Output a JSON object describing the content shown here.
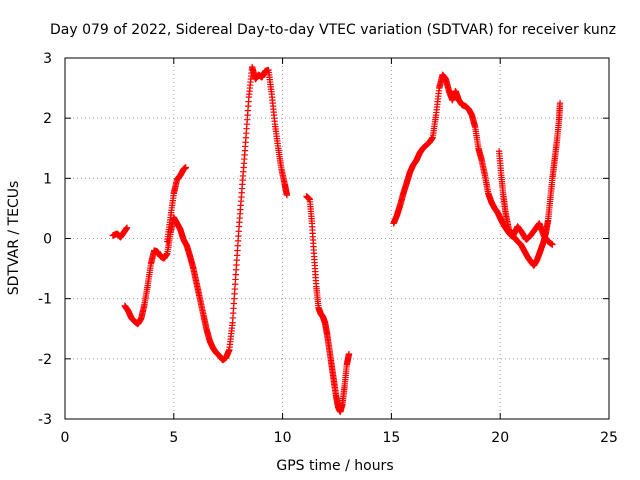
{
  "chart_data": {
    "type": "scatter",
    "title": "Day 079 of 2022, Sidereal Day-to-day VTEC variation (SDTVAR) for receiver kunz",
    "xlabel": "GPS time / hours",
    "ylabel": "SDTVAR / TECUs",
    "xlim": [
      0,
      25
    ],
    "ylim": [
      -3,
      3
    ],
    "xticks": [
      "0",
      "5",
      "10",
      "15",
      "20",
      "25"
    ],
    "yticks": [
      "-3",
      "-2",
      "-1",
      "0",
      "1",
      "2",
      "3"
    ],
    "grid": true,
    "marker": "plus",
    "color": "#ff0000",
    "segments": [
      [
        [
          2.2,
          0.05
        ],
        [
          2.4,
          0.08
        ],
        [
          2.55,
          0.02
        ],
        [
          2.7,
          0.1
        ],
        [
          2.85,
          0.18
        ]
      ],
      [
        [
          2.75,
          -1.12
        ],
        [
          2.9,
          -1.2
        ],
        [
          3.05,
          -1.32
        ],
        [
          3.2,
          -1.38
        ],
        [
          3.35,
          -1.42
        ],
        [
          3.5,
          -1.33
        ],
        [
          3.65,
          -1.1
        ],
        [
          3.8,
          -0.78
        ],
        [
          3.95,
          -0.42
        ],
        [
          4.1,
          -0.2
        ],
        [
          4.25,
          -0.22
        ],
        [
          4.4,
          -0.3
        ],
        [
          4.55,
          -0.33
        ],
        [
          4.7,
          -0.25
        ],
        [
          4.85,
          0.1
        ],
        [
          5.0,
          0.35
        ],
        [
          5.15,
          0.25
        ],
        [
          5.3,
          0.15
        ],
        [
          5.45,
          -0.02
        ],
        [
          5.6,
          -0.12
        ],
        [
          5.75,
          -0.3
        ],
        [
          5.9,
          -0.5
        ],
        [
          6.05,
          -0.75
        ],
        [
          6.2,
          -1.0
        ],
        [
          6.35,
          -1.25
        ],
        [
          6.5,
          -1.5
        ],
        [
          6.65,
          -1.7
        ],
        [
          6.8,
          -1.82
        ],
        [
          6.95,
          -1.9
        ],
        [
          7.1,
          -1.95
        ],
        [
          7.25,
          -2.02
        ],
        [
          7.4,
          -1.98
        ],
        [
          7.55,
          -1.85
        ],
        [
          7.7,
          -1.4
        ],
        [
          7.85,
          -0.6
        ],
        [
          8.0,
          0.2
        ],
        [
          8.15,
          0.9
        ],
        [
          8.3,
          1.6
        ],
        [
          8.45,
          2.35
        ],
        [
          8.6,
          2.85
        ],
        [
          8.75,
          2.65
        ],
        [
          8.9,
          2.72
        ],
        [
          9.05,
          2.68
        ],
        [
          9.2,
          2.78
        ],
        [
          9.35,
          2.8
        ],
        [
          9.5,
          2.4
        ],
        [
          9.65,
          1.9
        ],
        [
          9.8,
          1.5
        ],
        [
          9.95,
          1.15
        ],
        [
          10.1,
          0.9
        ],
        [
          10.2,
          0.72
        ]
      ],
      [
        [
          4.7,
          -0.05
        ],
        [
          4.85,
          0.35
        ],
        [
          5.0,
          0.75
        ],
        [
          5.15,
          0.98
        ],
        [
          5.3,
          1.05
        ],
        [
          5.45,
          1.15
        ],
        [
          5.55,
          1.18
        ]
      ],
      [
        [
          11.1,
          0.7
        ],
        [
          11.25,
          0.65
        ],
        [
          11.35,
          0.25
        ],
        [
          11.45,
          -0.3
        ],
        [
          11.55,
          -0.8
        ],
        [
          11.65,
          -1.15
        ],
        [
          11.75,
          -1.25
        ],
        [
          11.85,
          -1.3
        ],
        [
          11.95,
          -1.4
        ],
        [
          12.05,
          -1.6
        ],
        [
          12.15,
          -1.85
        ],
        [
          12.25,
          -2.1
        ],
        [
          12.35,
          -2.35
        ],
        [
          12.45,
          -2.6
        ],
        [
          12.55,
          -2.8
        ],
        [
          12.65,
          -2.88
        ],
        [
          12.75,
          -2.75
        ],
        [
          12.85,
          -2.45
        ],
        [
          12.95,
          -2.1
        ],
        [
          13.05,
          -1.92
        ]
      ],
      [
        [
          15.1,
          0.25
        ],
        [
          15.25,
          0.38
        ],
        [
          15.4,
          0.55
        ],
        [
          15.55,
          0.75
        ],
        [
          15.7,
          0.92
        ],
        [
          15.85,
          1.1
        ],
        [
          16.0,
          1.22
        ],
        [
          16.15,
          1.3
        ],
        [
          16.3,
          1.42
        ],
        [
          16.45,
          1.5
        ],
        [
          16.6,
          1.55
        ],
        [
          16.75,
          1.6
        ],
        [
          16.9,
          1.68
        ],
        [
          17.05,
          2.05
        ],
        [
          17.2,
          2.5
        ],
        [
          17.35,
          2.72
        ],
        [
          17.5,
          2.65
        ],
        [
          17.65,
          2.45
        ],
        [
          17.8,
          2.3
        ],
        [
          17.95,
          2.45
        ],
        [
          18.1,
          2.3
        ],
        [
          18.25,
          2.22
        ],
        [
          18.4,
          2.2
        ],
        [
          18.55,
          2.15
        ],
        [
          18.7,
          2.05
        ],
        [
          18.85,
          1.85
        ],
        [
          19.0,
          1.5
        ],
        [
          19.15,
          1.3
        ],
        [
          19.3,
          1.05
        ],
        [
          19.45,
          0.75
        ],
        [
          19.6,
          0.6
        ],
        [
          19.75,
          0.5
        ],
        [
          19.9,
          0.42
        ],
        [
          20.05,
          0.3
        ],
        [
          20.2,
          0.2
        ],
        [
          20.35,
          0.12
        ],
        [
          20.5,
          0.05
        ],
        [
          20.65,
          0.02
        ],
        [
          20.8,
          -0.05
        ],
        [
          20.95,
          -0.1
        ],
        [
          21.1,
          -0.2
        ],
        [
          21.25,
          -0.3
        ],
        [
          21.4,
          -0.38
        ],
        [
          21.55,
          -0.45
        ],
        [
          21.7,
          -0.35
        ],
        [
          21.85,
          -0.2
        ],
        [
          22.0,
          -0.05
        ],
        [
          22.1,
          0.1
        ],
        [
          22.2,
          0.3
        ],
        [
          22.3,
          0.65
        ],
        [
          22.4,
          1.0
        ],
        [
          22.5,
          1.3
        ],
        [
          22.6,
          1.6
        ],
        [
          22.7,
          1.95
        ],
        [
          22.75,
          2.25
        ]
      ],
      [
        [
          19.95,
          1.45
        ],
        [
          20.05,
          1.05
        ],
        [
          20.15,
          0.7
        ],
        [
          20.25,
          0.42
        ],
        [
          20.4,
          0.15
        ],
        [
          20.6,
          0.05
        ],
        [
          20.8,
          0.2
        ],
        [
          21.0,
          0.1
        ],
        [
          21.2,
          -0.02
        ],
        [
          21.4,
          0.05
        ],
        [
          21.6,
          0.15
        ],
        [
          21.8,
          0.25
        ],
        [
          22.0,
          0.05
        ],
        [
          22.2,
          -0.05
        ],
        [
          22.4,
          -0.1
        ]
      ]
    ]
  }
}
